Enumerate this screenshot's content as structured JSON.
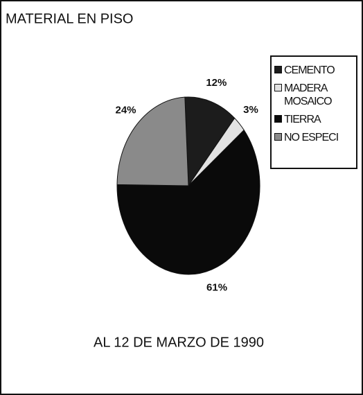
{
  "chart_data": {
    "type": "pie",
    "title": "MATERIAL EN PISO",
    "subtitle": "AL 12 DE MARZO DE 1990",
    "categories": [
      "CEMENTO",
      "MADERA MOSAICO",
      "TIERRA",
      "NO ESPECI"
    ],
    "values": [
      12,
      3,
      61,
      24
    ],
    "value_labels": [
      "12%",
      "3%",
      "61%",
      "24%"
    ],
    "colors": [
      "#1c1c1c",
      "#e2e2e2",
      "#0a0a0a",
      "#8a8a8a"
    ],
    "legend": "right"
  }
}
